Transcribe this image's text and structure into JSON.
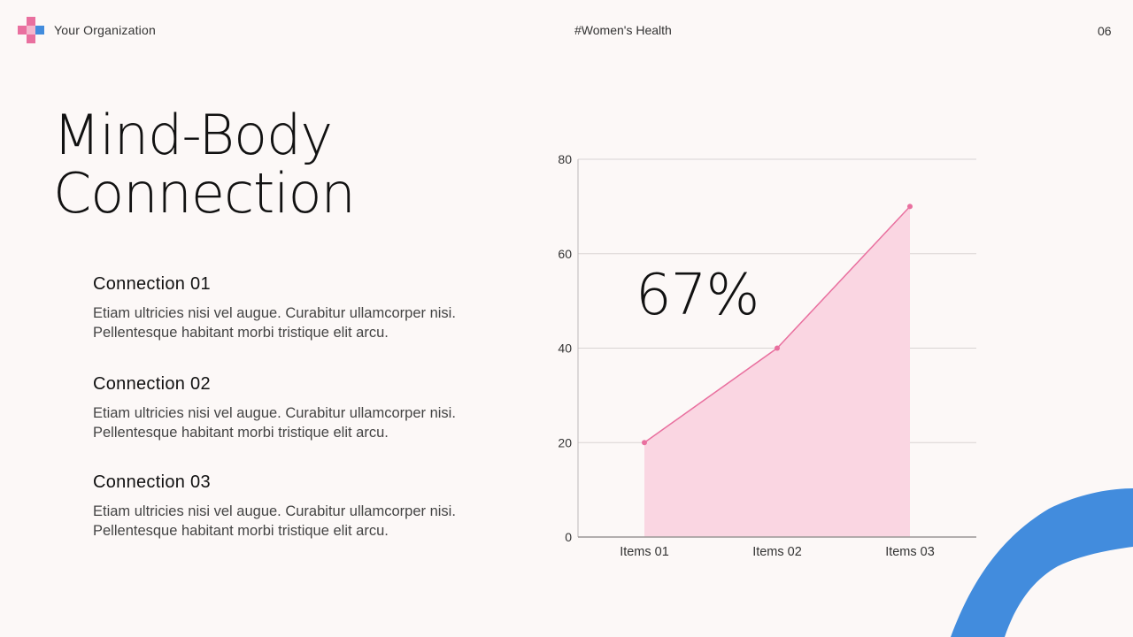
{
  "header": {
    "organization": "Your Organization",
    "hashtag": "#Women's Health",
    "page_number": "06"
  },
  "title": {
    "line1": "Mind-Body",
    "line2": "Connection"
  },
  "connections": [
    {
      "heading": "Connection 01",
      "body": "Etiam ultricies nisi vel augue. Curabitur ullamcorper nisi. Pellentesque habitant morbi tristique elit arcu."
    },
    {
      "heading": "Connection 02",
      "body": "Etiam ultricies nisi vel augue. Curabitur ullamcorper nisi. Pellentesque habitant morbi tristique elit arcu."
    },
    {
      "heading": "Connection 03",
      "body": "Etiam ultricies nisi vel augue. Curabitur ullamcorper nisi. Pellentesque habitant morbi tristique elit arcu."
    }
  ],
  "stat": {
    "value": "67%"
  },
  "colors": {
    "pink": "#e9709f",
    "area_fill": "#fad6e2",
    "blue": "#428cdd",
    "grid": "#d9d4d4"
  },
  "chart_data": {
    "type": "area",
    "categories": [
      "Items 01",
      "Items 02",
      "Items 03"
    ],
    "series": [
      {
        "values": [
          20,
          40,
          70
        ]
      }
    ],
    "ylim": [
      0,
      80
    ],
    "yticks": [
      0,
      20,
      40,
      60,
      80
    ],
    "grid": true,
    "legend": "none"
  }
}
